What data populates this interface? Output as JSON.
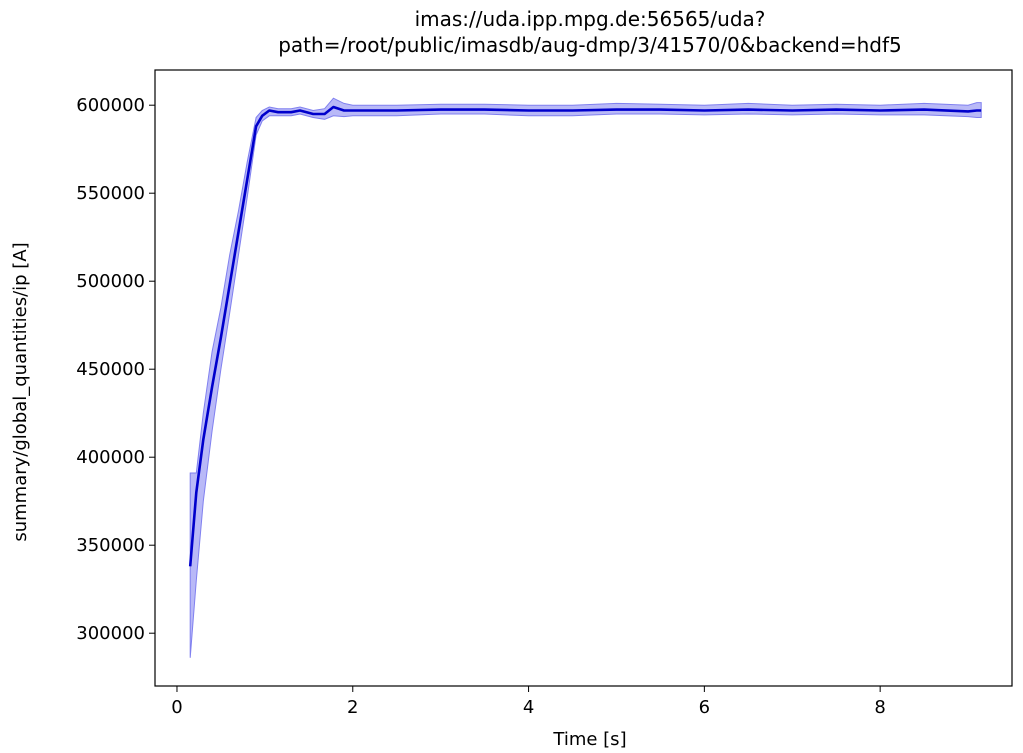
{
  "chart_data": {
    "type": "line",
    "title_line1": "imas://uda.ipp.mpg.de:56565/uda?",
    "title_line2": "path=/root/public/imasdb/aug-dmp/3/41570/0&backend=hdf5",
    "xlabel": "Time [s]",
    "ylabel": "summary/global_quantities/ip [A]",
    "xlim": [
      -0.25,
      9.5
    ],
    "ylim": [
      270000,
      620000
    ],
    "x_ticks": [
      0,
      2,
      4,
      6,
      8
    ],
    "x_tick_labels": [
      "0",
      "2",
      "4",
      "6",
      "8"
    ],
    "y_ticks": [
      300000,
      350000,
      400000,
      450000,
      500000,
      550000,
      600000
    ],
    "y_tick_labels": [
      "300000",
      "350000",
      "400000",
      "450000",
      "500000",
      "550000",
      "600000"
    ],
    "grid": false,
    "line_color": "#0000cc",
    "band_color": "#8080f0",
    "series": [
      {
        "x": [
          0.15,
          0.22,
          0.3,
          0.4,
          0.5,
          0.6,
          0.7,
          0.8,
          0.9,
          0.97,
          1.05,
          1.15,
          1.3,
          1.4,
          1.55,
          1.68,
          1.78,
          1.9,
          2.0,
          2.5,
          3.0,
          3.5,
          4.0,
          4.5,
          5.0,
          5.5,
          6.0,
          6.5,
          7.0,
          7.5,
          8.0,
          8.5,
          9.0,
          9.1,
          9.15
        ],
        "y": [
          338000,
          380000,
          410000,
          440000,
          468000,
          498000,
          528000,
          558000,
          588000,
          594000,
          597000,
          596000,
          596000,
          597000,
          595000,
          595000,
          599000,
          597000,
          597000,
          597000,
          597500,
          597500,
          597000,
          597000,
          597500,
          597500,
          597000,
          597500,
          597000,
          597500,
          597000,
          597500,
          596500,
          597000,
          597000
        ],
        "lower": [
          286000,
          330000,
          375000,
          415000,
          450000,
          482000,
          515000,
          548000,
          583000,
          591000,
          594000,
          594000,
          594000,
          595000,
          593000,
          592000,
          594000,
          593500,
          594000,
          594000,
          595000,
          595000,
          594000,
          594000,
          595000,
          595000,
          594500,
          595000,
          594500,
          595000,
          594500,
          594500,
          593500,
          593000,
          593000
        ],
        "upper": [
          391000,
          391000,
          425000,
          460000,
          485000,
          515000,
          540000,
          568000,
          593000,
          597000,
          599000,
          598000,
          598000,
          599000,
          597000,
          598000,
          604000,
          601000,
          600000,
          600000,
          600500,
          600500,
          600000,
          600000,
          601000,
          600500,
          600000,
          601000,
          600000,
          600500,
          600000,
          601000,
          600000,
          601500,
          601500
        ]
      }
    ]
  }
}
